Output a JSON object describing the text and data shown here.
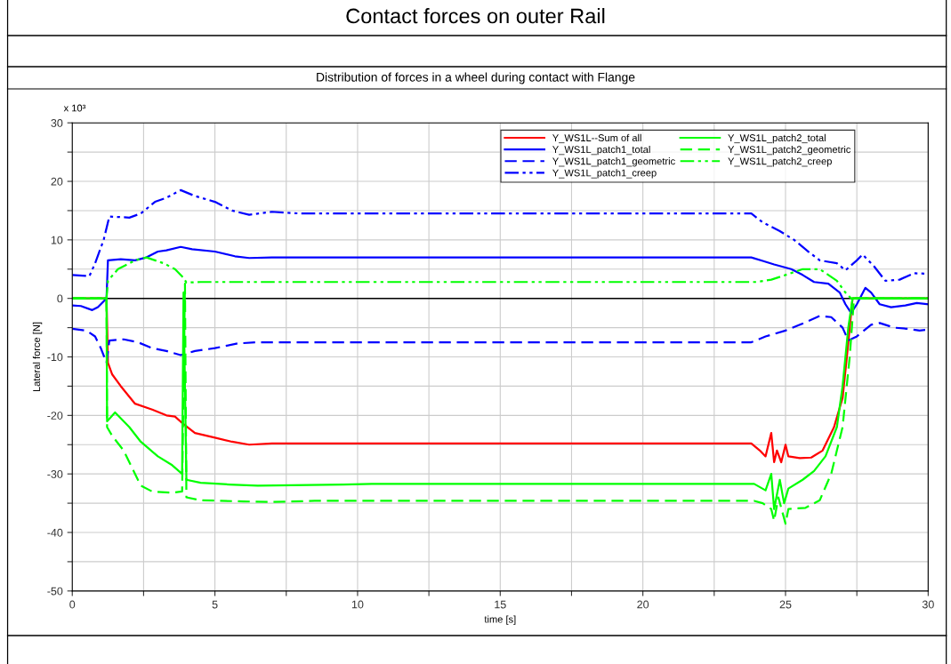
{
  "chart_data": {
    "type": "line",
    "title": "Contact forces on outer Rail",
    "subtitle": "Distribution of forces in a wheel during contact with Flange",
    "xlabel": "time [s]",
    "ylabel": "Lateral force [N]",
    "annotations": [
      "x 10³"
    ],
    "xlim": [
      0,
      30
    ],
    "ylim": [
      -50,
      30
    ],
    "xticks": [
      0,
      {
        "value": 2.5,
        "label": null
      },
      5,
      {
        "value": 7.5,
        "label": null
      },
      10,
      {
        "value": 12.5,
        "label": null
      },
      15,
      {
        "value": 17.5,
        "label": null
      },
      20,
      {
        "value": 22.5,
        "label": null
      },
      25,
      {
        "value": 27.5,
        "label": null
      },
      30
    ],
    "yticks": [
      -50,
      {
        "value": -45,
        "label": null
      },
      -40,
      {
        "value": -35,
        "label": null
      },
      -30,
      {
        "value": -25,
        "label": null
      },
      -20,
      {
        "value": -15,
        "label": null
      },
      -10,
      {
        "value": -5,
        "label": null
      },
      0,
      {
        "value": 5,
        "label": null
      },
      10,
      {
        "value": 15,
        "label": null
      },
      20,
      {
        "value": 25,
        "label": null
      },
      30
    ],
    "grid": true,
    "legend": "top right",
    "ref_lines": [
      {
        "axis": "y",
        "value": 0,
        "label": null,
        "color": "#000000",
        "line_style": "solid"
      }
    ],
    "series": [
      {
        "name": "Y_WS1L--Sum of all",
        "color": "#ff0000",
        "line_style": "solid",
        "x": [
          0,
          1.2,
          1.25,
          1.4,
          1.7,
          2.2,
          2.8,
          3.3,
          3.6,
          3.9,
          4.3,
          5.0,
          5.6,
          6.2,
          7,
          23.8,
          24.1,
          24.3,
          24.5,
          24.6,
          24.7,
          24.85,
          25.0,
          25.1,
          25.5,
          25.9,
          26.3,
          26.7,
          27.0,
          27.15,
          27.35,
          30
        ],
        "values": [
          0,
          0,
          -11,
          -13,
          -15,
          -18,
          -19,
          -20,
          -20.2,
          -21.5,
          -23,
          -23.8,
          -24.5,
          -25,
          -24.8,
          -24.8,
          -26,
          -27,
          -23,
          -28,
          -26,
          -28,
          -25,
          -27,
          -27.3,
          -27.2,
          -26,
          -22,
          -17,
          -10,
          0,
          0
        ]
      },
      {
        "name": "Y_WS1L_patch1_total",
        "color": "#0000ff",
        "line_style": "solid",
        "x": [
          0,
          0.3,
          0.7,
          0.9,
          1.1,
          1.2,
          1.25,
          1.7,
          2.2,
          2.6,
          3.0,
          3.3,
          3.8,
          4.2,
          5,
          5.7,
          6.2,
          7,
          23.8,
          24.2,
          24.6,
          25.2,
          25.6,
          26.0,
          26.5,
          26.9,
          27.1,
          27.3,
          27.5,
          27.8,
          28.0,
          28.3,
          28.7,
          29.2,
          29.6,
          30
        ],
        "values": [
          -1.2,
          -1.3,
          -2,
          -1.5,
          -0.5,
          0,
          6.5,
          6.7,
          6.5,
          7,
          8,
          8.2,
          8.8,
          8.4,
          8,
          7.2,
          6.9,
          7,
          7,
          6.4,
          5.8,
          5,
          4,
          2.8,
          2.5,
          1,
          -1,
          -2.5,
          -1,
          1.8,
          1,
          -1,
          -1.5,
          -1.2,
          -0.8,
          -1
        ]
      },
      {
        "name": "Y_WS1L_patch1_geometric",
        "color": "#0000ff",
        "line_style": "dashed",
        "x": [
          0,
          0.5,
          0.8,
          1.0,
          1.2,
          1.3,
          1.8,
          2.3,
          2.8,
          3.3,
          3.8,
          4.3,
          5.0,
          5.8,
          6.5,
          23.8,
          24.3,
          25.0,
          25.6,
          26.2,
          26.6,
          27.0,
          27.2,
          27.5,
          28.0,
          28.3,
          28.8,
          29.3,
          29.7,
          30
        ],
        "values": [
          -5.2,
          -5.5,
          -6.5,
          -8.5,
          -11,
          -7.2,
          -7,
          -7.5,
          -8.5,
          -9,
          -9.7,
          -9,
          -8.5,
          -7.7,
          -7.5,
          -7.5,
          -6.5,
          -5.5,
          -4.3,
          -3,
          -3.2,
          -5,
          -7.2,
          -6.5,
          -4.5,
          -4.2,
          -5,
          -5.2,
          -5.5,
          -5.3
        ]
      },
      {
        "name": "Y_WS1L_patch1_creep",
        "color": "#0000ff",
        "line_style": "dashdotdot",
        "x": [
          0,
          0.6,
          0.8,
          1.1,
          1.3,
          2.0,
          2.4,
          2.9,
          3.3,
          3.8,
          4.3,
          5.0,
          5.6,
          6.2,
          7.0,
          8,
          23.8,
          24.2,
          24.8,
          25.3,
          25.8,
          26.2,
          26.8,
          27.1,
          27.5,
          27.7,
          28.1,
          28.5,
          29.0,
          29.5,
          30
        ],
        "values": [
          4,
          3.8,
          6,
          10,
          14,
          13.8,
          14.5,
          16.5,
          17.2,
          18.5,
          17.5,
          16.5,
          15,
          14.3,
          14.8,
          14.5,
          14.5,
          13,
          11.5,
          10,
          8,
          6.5,
          6,
          4.8,
          6.5,
          7.5,
          5.5,
          3,
          3.2,
          4.3,
          4.2
        ]
      },
      {
        "name": "Y_WS1L_patch2_total",
        "color": "#00ff00",
        "line_style": "solid",
        "x": [
          0,
          1.2,
          1.22,
          1.5,
          2.0,
          2.4,
          3.0,
          3.5,
          3.85,
          3.9,
          4.0,
          4.5,
          5.5,
          6.5,
          9.5,
          10.5,
          23.9,
          24.3,
          24.5,
          24.6,
          24.8,
          24.95,
          25.1,
          25.6,
          26.0,
          26.4,
          26.8,
          27.0,
          27.2,
          27.35,
          30
        ],
        "values": [
          0,
          0,
          -21,
          -19.5,
          -22,
          -24.5,
          -27,
          -28.5,
          -30,
          1,
          -31,
          -31.5,
          -31.8,
          -32,
          -31.8,
          -31.7,
          -31.7,
          -32.8,
          -30,
          -36,
          -31,
          -35,
          -32.5,
          -31,
          -29.5,
          -27,
          -22,
          -15,
          -5,
          0,
          0
        ]
      },
      {
        "name": "Y_WS1L_patch2_geometric",
        "color": "#00ff00",
        "line_style": "dashed",
        "x": [
          0,
          1.2,
          1.22,
          1.4,
          1.8,
          2.1,
          2.4,
          2.8,
          3.5,
          3.85,
          3.95,
          4.0,
          4.5,
          6,
          7,
          8.5,
          23.9,
          24.2,
          24.5,
          24.6,
          24.75,
          25.0,
          25.1,
          25.7,
          26.2,
          26.6,
          27.0,
          27.25,
          27.4,
          30
        ],
        "values": [
          0,
          0,
          -22,
          -23.5,
          -26,
          -29,
          -32,
          -33,
          -33.2,
          -33,
          2.5,
          -34,
          -34.5,
          -34.7,
          -34.8,
          -34.6,
          -34.6,
          -35,
          -36,
          -38,
          -34,
          -38.5,
          -36,
          -35.8,
          -34.5,
          -30,
          -22,
          -10,
          0,
          0
        ]
      },
      {
        "name": "Y_WS1L_patch2_creep",
        "color": "#00ff00",
        "line_style": "dashdotdot",
        "x": [
          0,
          1.2,
          1.25,
          1.6,
          2.2,
          2.6,
          3.2,
          3.6,
          3.9,
          4.0,
          4.5,
          24.0,
          24.5,
          25.0,
          25.6,
          26.2,
          26.8,
          27.1,
          27.3,
          30
        ],
        "values": [
          0,
          0,
          3,
          5,
          6.5,
          7,
          6,
          5,
          3.5,
          2.7,
          2.8,
          2.8,
          3.2,
          4,
          5,
          5,
          3,
          1,
          0,
          0
        ]
      }
    ]
  }
}
